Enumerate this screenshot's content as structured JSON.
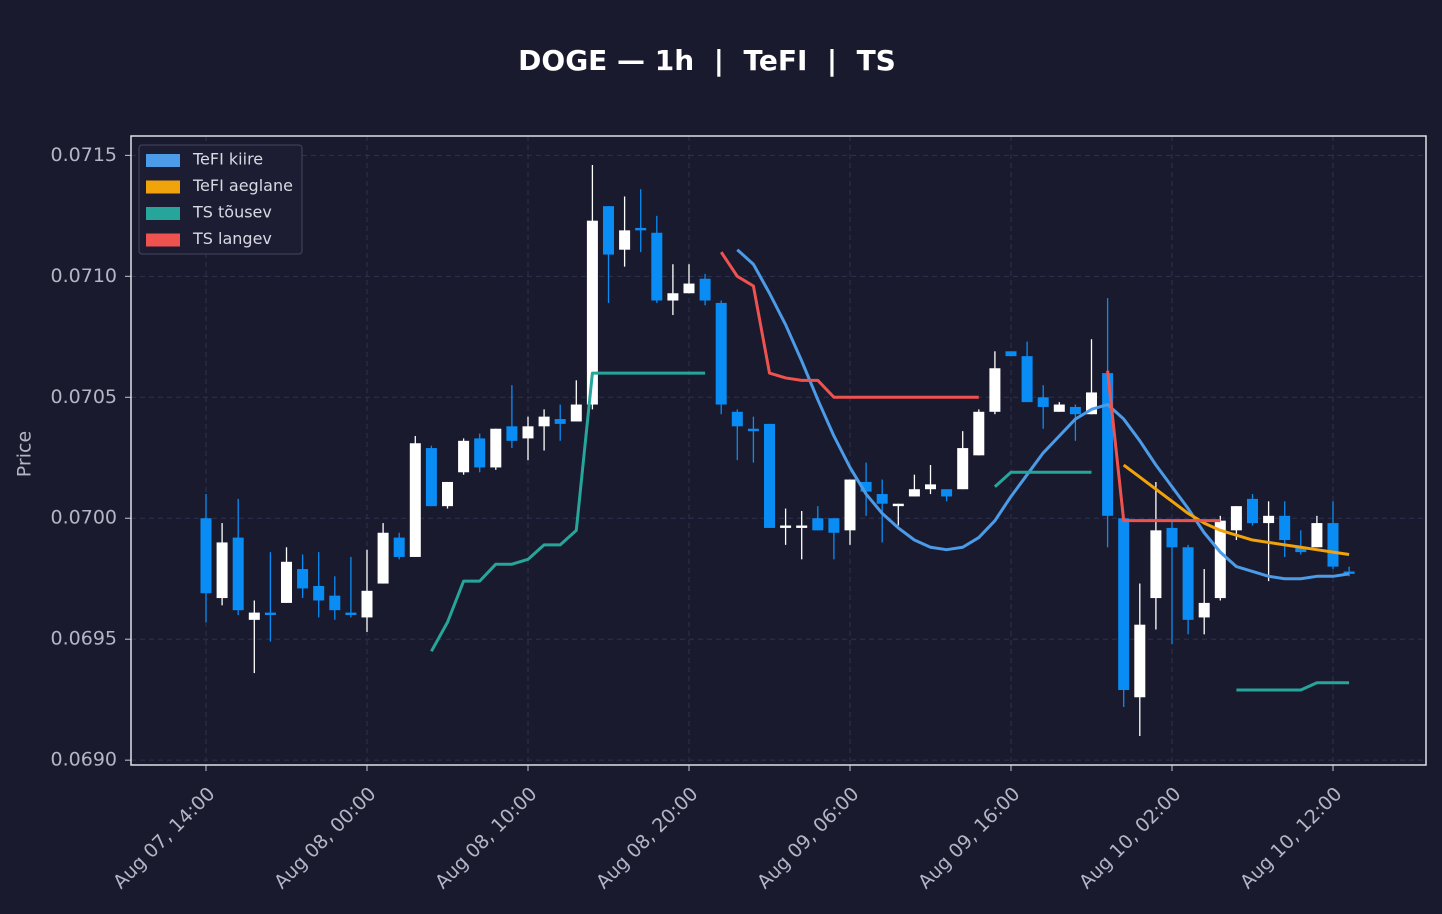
{
  "chart_data": {
    "type": "candlestick",
    "title": "DOGE — 1h  |  TeFI  |  TS",
    "ylabel": "Price",
    "x": [
      "Aug 07, 14:00",
      "Aug 07, 15:00",
      "Aug 07, 16:00",
      "Aug 07, 17:00",
      "Aug 07, 18:00",
      "Aug 07, 19:00",
      "Aug 07, 20:00",
      "Aug 07, 21:00",
      "Aug 07, 22:00",
      "Aug 07, 23:00",
      "Aug 08, 00:00",
      "Aug 08, 01:00",
      "Aug 08, 02:00",
      "Aug 08, 03:00",
      "Aug 08, 04:00",
      "Aug 08, 05:00",
      "Aug 08, 06:00",
      "Aug 08, 07:00",
      "Aug 08, 08:00",
      "Aug 08, 09:00",
      "Aug 08, 10:00",
      "Aug 08, 11:00",
      "Aug 08, 12:00",
      "Aug 08, 13:00",
      "Aug 08, 14:00",
      "Aug 08, 15:00",
      "Aug 08, 16:00",
      "Aug 08, 17:00",
      "Aug 08, 18:00",
      "Aug 08, 19:00",
      "Aug 08, 20:00",
      "Aug 08, 21:00",
      "Aug 08, 22:00",
      "Aug 08, 23:00",
      "Aug 09, 00:00",
      "Aug 09, 01:00",
      "Aug 09, 02:00",
      "Aug 09, 03:00",
      "Aug 09, 04:00",
      "Aug 09, 05:00",
      "Aug 09, 06:00",
      "Aug 09, 07:00",
      "Aug 09, 08:00",
      "Aug 09, 09:00",
      "Aug 09, 10:00",
      "Aug 09, 11:00",
      "Aug 09, 12:00",
      "Aug 09, 13:00",
      "Aug 09, 14:00",
      "Aug 09, 15:00",
      "Aug 09, 16:00",
      "Aug 09, 17:00",
      "Aug 09, 18:00",
      "Aug 09, 19:00",
      "Aug 09, 20:00",
      "Aug 09, 21:00",
      "Aug 09, 22:00",
      "Aug 09, 23:00",
      "Aug 10, 00:00",
      "Aug 10, 01:00",
      "Aug 10, 02:00",
      "Aug 10, 03:00",
      "Aug 10, 04:00",
      "Aug 10, 05:00",
      "Aug 10, 06:00",
      "Aug 10, 07:00",
      "Aug 10, 08:00",
      "Aug 10, 09:00",
      "Aug 10, 10:00",
      "Aug 10, 11:00",
      "Aug 10, 12:00",
      "Aug 10, 13:00"
    ],
    "open": [
      0.07,
      0.06967,
      0.06992,
      0.06958,
      0.06961,
      0.06965,
      0.06979,
      0.06972,
      0.06968,
      0.06961,
      0.06959,
      0.06973,
      0.06992,
      0.06984,
      0.07029,
      0.07005,
      0.07019,
      0.07033,
      0.07021,
      0.07038,
      0.07033,
      0.07038,
      0.07041,
      0.0704,
      0.07047,
      0.07129,
      0.07111,
      0.0712,
      0.07118,
      0.0709,
      0.07093,
      0.07099,
      0.07089,
      0.07044,
      0.07037,
      0.07039,
      0.06996,
      0.06996,
      0.07,
      0.07,
      0.06995,
      0.07015,
      0.0701,
      0.07005,
      0.07009,
      0.07012,
      0.07012,
      0.07012,
      0.07026,
      0.07044,
      0.07069,
      0.07067,
      0.0705,
      0.07044,
      0.07046,
      0.07043,
      0.0706,
      0.07,
      0.06926,
      0.06967,
      0.06996,
      0.06988,
      0.06959,
      0.06967,
      0.06995,
      0.07008,
      0.06998,
      0.07001,
      0.06988,
      0.06988,
      0.06998,
      0.06978
    ],
    "high": [
      0.0701,
      0.06998,
      0.07008,
      0.06966,
      0.06986,
      0.06988,
      0.06985,
      0.06986,
      0.06976,
      0.06984,
      0.06987,
      0.06998,
      0.06994,
      0.07034,
      0.0703,
      0.07015,
      0.07033,
      0.07035,
      0.07037,
      0.07055,
      0.07042,
      0.07045,
      0.07047,
      0.07057,
      0.07146,
      0.07129,
      0.07133,
      0.07136,
      0.07125,
      0.07105,
      0.07105,
      0.07101,
      0.0709,
      0.07045,
      0.07042,
      0.07039,
      0.07004,
      0.07003,
      0.07005,
      0.07,
      0.07016,
      0.07023,
      0.07016,
      0.07006,
      0.07018,
      0.07022,
      0.07012,
      0.07036,
      0.07045,
      0.07069,
      0.07069,
      0.07073,
      0.07055,
      0.07048,
      0.07047,
      0.07074,
      0.07091,
      0.07,
      0.06973,
      0.07015,
      0.06999,
      0.06989,
      0.06979,
      0.07001,
      0.07005,
      0.0701,
      0.07007,
      0.07007,
      0.06995,
      0.07001,
      0.07007,
      0.0698
    ],
    "low": [
      0.06957,
      0.06964,
      0.0696,
      0.06936,
      0.06949,
      0.06965,
      0.06967,
      0.06959,
      0.06958,
      0.06959,
      0.06953,
      0.06973,
      0.06983,
      0.06984,
      0.07005,
      0.07004,
      0.07018,
      0.07019,
      0.0702,
      0.07029,
      0.07024,
      0.07028,
      0.07032,
      0.0704,
      0.07045,
      0.07089,
      0.07104,
      0.0711,
      0.07089,
      0.07084,
      0.07093,
      0.07088,
      0.07043,
      0.07024,
      0.07023,
      0.06996,
      0.06989,
      0.06983,
      0.06995,
      0.06983,
      0.06989,
      0.07001,
      0.0699,
      0.06997,
      0.07009,
      0.0701,
      0.07007,
      0.07012,
      0.07026,
      0.07043,
      0.07067,
      0.07048,
      0.07037,
      0.07044,
      0.07032,
      0.07043,
      0.06988,
      0.06922,
      0.0691,
      0.06954,
      0.06948,
      0.06952,
      0.06952,
      0.06966,
      0.06991,
      0.06997,
      0.06974,
      0.06984,
      0.06985,
      0.06988,
      0.06979,
      0.06976
    ],
    "close": [
      0.06969,
      0.0699,
      0.06962,
      0.06961,
      0.0696,
      0.06982,
      0.06971,
      0.06966,
      0.06962,
      0.0696,
      0.0697,
      0.06994,
      0.06984,
      0.07031,
      0.07005,
      0.07015,
      0.07032,
      0.07021,
      0.07037,
      0.07032,
      0.07038,
      0.07042,
      0.07039,
      0.07047,
      0.07123,
      0.07109,
      0.07119,
      0.07119,
      0.0709,
      0.07093,
      0.07097,
      0.0709,
      0.07047,
      0.07038,
      0.07036,
      0.06996,
      0.06997,
      0.06997,
      0.06995,
      0.06994,
      0.07016,
      0.07011,
      0.07006,
      0.07006,
      0.07012,
      0.07014,
      0.07009,
      0.07029,
      0.07044,
      0.07062,
      0.07067,
      0.07048,
      0.07046,
      0.07047,
      0.07043,
      0.07052,
      0.07001,
      0.06929,
      0.06956,
      0.06995,
      0.06988,
      0.06958,
      0.06965,
      0.06999,
      0.07005,
      0.06998,
      0.07001,
      0.06991,
      0.06986,
      0.06998,
      0.0698,
      0.06977
    ],
    "up_color": "#ffffff",
    "down_color": "#0a8cf5",
    "series": [
      {
        "name": "TeFI kiire",
        "color": "#4c9be8",
        "values": [
          null,
          null,
          null,
          null,
          null,
          null,
          null,
          null,
          null,
          null,
          null,
          null,
          null,
          null,
          null,
          null,
          null,
          null,
          null,
          null,
          null,
          null,
          null,
          null,
          null,
          null,
          null,
          null,
          null,
          null,
          null,
          null,
          null,
          0.07111,
          0.07105,
          0.07093,
          0.0708,
          0.07065,
          0.07049,
          0.07034,
          0.07021,
          0.0701,
          0.07002,
          0.06996,
          0.06991,
          0.06988,
          0.06987,
          0.06988,
          0.06992,
          0.06999,
          0.07009,
          0.07018,
          0.07027,
          0.07034,
          0.07041,
          0.07045,
          0.07047,
          0.07041,
          0.07032,
          0.07022,
          0.07013,
          0.07004,
          0.06994,
          0.06986,
          0.0698,
          0.06978,
          0.06976,
          0.06975,
          0.06975,
          0.06976,
          0.06976,
          0.06977
        ]
      },
      {
        "name": "TeFI aeglane",
        "color": "#f0a30a",
        "values": [
          null,
          null,
          null,
          null,
          null,
          null,
          null,
          null,
          null,
          null,
          null,
          null,
          null,
          null,
          null,
          null,
          null,
          null,
          null,
          null,
          null,
          null,
          null,
          null,
          null,
          null,
          null,
          null,
          null,
          null,
          null,
          null,
          null,
          null,
          null,
          null,
          null,
          null,
          null,
          null,
          null,
          null,
          null,
          null,
          null,
          null,
          null,
          null,
          null,
          null,
          null,
          null,
          null,
          null,
          null,
          null,
          null,
          0.07022,
          0.07017,
          0.07012,
          0.07007,
          0.07002,
          0.06998,
          0.06995,
          0.06993,
          0.06991,
          0.0699,
          0.06989,
          0.06988,
          0.06987,
          0.06986,
          0.06985
        ]
      },
      {
        "name": "TS tõusev",
        "color": "#26a69a",
        "values": [
          null,
          null,
          null,
          null,
          null,
          null,
          null,
          null,
          null,
          null,
          null,
          null,
          null,
          null,
          0.06945,
          0.06957,
          0.06974,
          0.06974,
          0.06981,
          0.06981,
          0.06983,
          0.06989,
          0.06989,
          0.06995,
          0.0706,
          0.0706,
          0.0706,
          0.0706,
          0.0706,
          0.0706,
          0.0706,
          0.0706,
          null,
          null,
          null,
          null,
          null,
          null,
          null,
          null,
          null,
          null,
          null,
          null,
          null,
          null,
          null,
          null,
          null,
          0.07013,
          0.07019,
          0.07019,
          0.07019,
          0.07019,
          0.07019,
          0.07019,
          null,
          null,
          null,
          null,
          null,
          null,
          null,
          null,
          0.06929,
          0.06929,
          0.06929,
          0.06929,
          0.06929,
          0.06932,
          0.06932,
          0.06932
        ]
      },
      {
        "name": "TS langev",
        "color": "#ef5350",
        "values": [
          null,
          null,
          null,
          null,
          null,
          null,
          null,
          null,
          null,
          null,
          null,
          null,
          null,
          null,
          null,
          null,
          null,
          null,
          null,
          null,
          null,
          null,
          null,
          null,
          null,
          null,
          null,
          null,
          null,
          null,
          null,
          null,
          0.0711,
          0.071,
          0.07096,
          0.0706,
          0.07058,
          0.07057,
          0.07057,
          0.0705,
          0.0705,
          0.0705,
          0.0705,
          0.0705,
          0.0705,
          0.0705,
          0.0705,
          0.0705,
          0.0705,
          null,
          null,
          null,
          null,
          null,
          null,
          null,
          0.07061,
          0.06999,
          0.06999,
          0.06999,
          0.06999,
          0.06999,
          0.06999,
          0.06999,
          null,
          null,
          null,
          null,
          null,
          null,
          null,
          null
        ]
      }
    ],
    "ylim": [
      0.06898,
      0.07158
    ],
    "yticks": [
      {
        "value": 0.069,
        "label": "0.0690"
      },
      {
        "value": 0.0695,
        "label": "0.0695"
      },
      {
        "value": 0.07,
        "label": "0.0700"
      },
      {
        "value": 0.0705,
        "label": "0.0705"
      },
      {
        "value": 0.071,
        "label": "0.0710"
      },
      {
        "value": 0.0715,
        "label": "0.0715"
      }
    ],
    "xticks": [
      "Aug 07, 14:00",
      "Aug 08, 00:00",
      "Aug 08, 10:00",
      "Aug 08, 20:00",
      "Aug 09, 06:00",
      "Aug 09, 16:00",
      "Aug 10, 02:00",
      "Aug 10, 12:00"
    ],
    "grid": true,
    "legend": "upper left"
  }
}
